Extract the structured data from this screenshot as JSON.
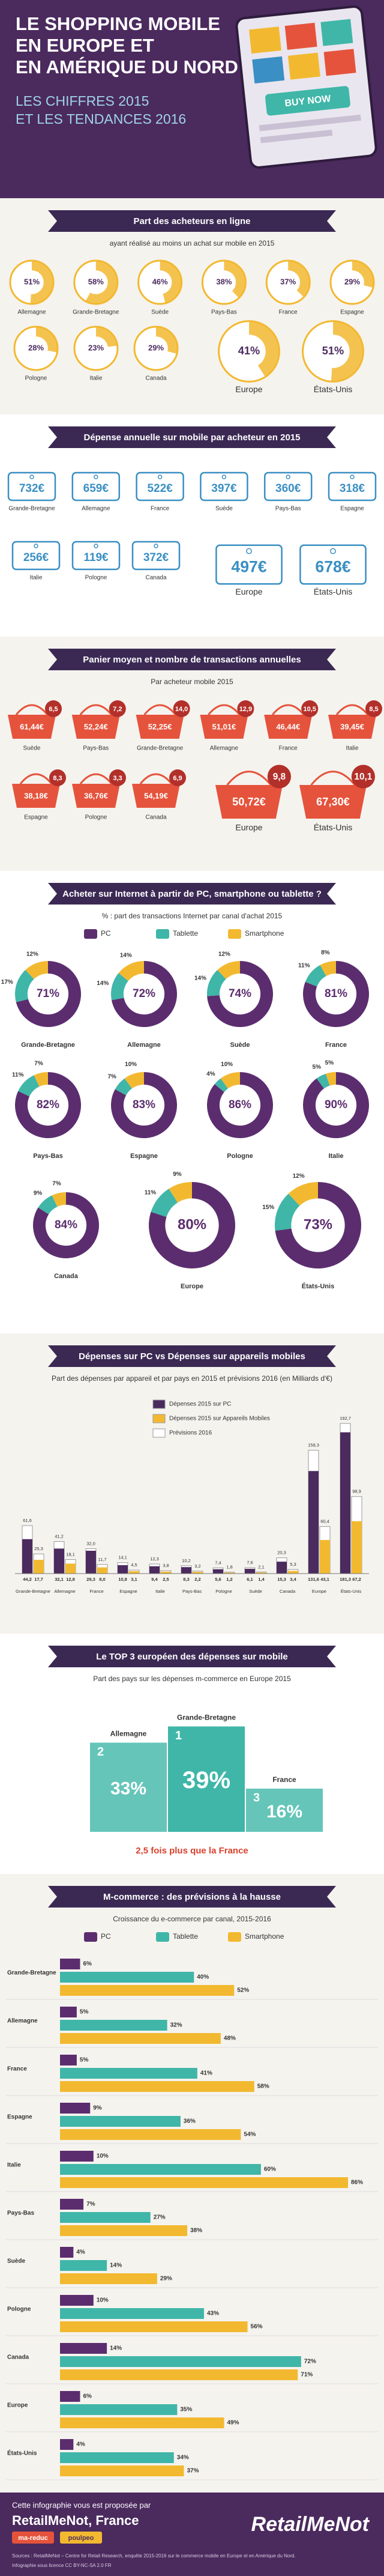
{
  "header": {
    "title_lines": [
      "LE SHOPPING MOBILE",
      "EN EUROPE ET",
      "EN AMÉRIQUE DU NORD"
    ],
    "subtitle_lines": [
      "LES CHIFFRES 2015",
      "ET LES TENDANCES 2016"
    ],
    "button": "BUY NOW"
  },
  "chart_data": [
    {
      "type": "pie",
      "title": "Part des acheteurs en ligne",
      "subtitle": "ayant réalisé au moins un achat sur mobile en 2015",
      "categories": [
        "Allemagne",
        "Grande-Bretagne",
        "Suède",
        "Pays-Bas",
        "France",
        "Espagne",
        "Pologne",
        "Italie",
        "Canada",
        "Europe",
        "États-Unis"
      ],
      "values": [
        51,
        58,
        46,
        38,
        37,
        29,
        28,
        23,
        29,
        41,
        51
      ],
      "value_labels": [
        "51%",
        "58%",
        "46%",
        "38%",
        "37%",
        "29%",
        "28%",
        "23%",
        "29%",
        "41%",
        "51%"
      ],
      "color": "#f2b930"
    },
    {
      "type": "tag",
      "title": "Dépense annuelle sur mobile par acheteur en 2015",
      "categories": [
        "Grande-Bretagne",
        "Allemagne",
        "France",
        "Suède",
        "Pays-Bas",
        "Espagne",
        "Italie",
        "Pologne",
        "Canada",
        "Europe",
        "États-Unis"
      ],
      "values": [
        732,
        659,
        522,
        397,
        360,
        318,
        256,
        119,
        372,
        497,
        678
      ],
      "value_labels": [
        "732€",
        "659€",
        "522€",
        "397€",
        "360€",
        "318€",
        "256€",
        "119€",
        "372€",
        "497€",
        "678€"
      ],
      "color": "#3a8fc4"
    },
    {
      "type": "basket",
      "title": "Panier moyen et nombre de transactions annuelles",
      "subtitle": "Par acheteur mobile 2015",
      "categories": [
        "Suède",
        "Pays-Bas",
        "Grande-Bretagne",
        "Allemagne",
        "France",
        "Italie",
        "Espagne",
        "Pologne",
        "Canada",
        "Europe",
        "États-Unis"
      ],
      "series": [
        {
          "color": "#e5533c",
          "values": [
            61.44,
            52.24,
            52.25,
            51.01,
            46.44,
            39.45,
            38.18,
            36.76,
            54.19,
            50.72,
            67.3
          ],
          "value_labels": [
            "61,44€",
            "52,24€",
            "52,25€",
            "51,01€",
            "46,44€",
            "39,45€",
            "38,18€",
            "36,76€",
            "54,19€",
            "50,72€",
            "67,30€"
          ]
        },
        {
          "color": "#b3302a",
          "values": [
            6.5,
            7.2,
            14.0,
            12.9,
            10.5,
            8.5,
            8.3,
            3.3,
            6.9,
            9.8,
            10.1
          ],
          "value_labels": [
            "6,5",
            "7,2",
            "14,0",
            "12,9",
            "10,5",
            "8,5",
            "8,3",
            "3,3",
            "6,9",
            "9,8",
            "10,1"
          ]
        }
      ]
    },
    {
      "type": "donut",
      "title": "Acheter sur Internet à partir de PC, smartphone ou tablette ?",
      "subtitle": "% : part des transactions Internet par canal d'achat 2015",
      "categories": [
        "Grande-Bretagne",
        "Allemagne",
        "Suède",
        "France",
        "Pays-Bas",
        "Espagne",
        "Pologne",
        "Italie",
        "Canada",
        "Europe",
        "États-Unis"
      ],
      "series": [
        {
          "name": "PC",
          "color": "#5b2d6e",
          "values": [
            71,
            72,
            74,
            81,
            82,
            83,
            86,
            90,
            84,
            80,
            73
          ],
          "value_labels": [
            "71%",
            "72%",
            "74%",
            "81%",
            "82%",
            "83%",
            "86%",
            "90%",
            "84%",
            "80%",
            "73%"
          ]
        },
        {
          "name": "Tablette",
          "color": "#3fb6a8",
          "values": [
            17,
            14,
            14,
            11,
            11,
            7,
            4,
            5,
            9,
            11,
            15
          ],
          "value_labels": [
            "17%",
            "14%",
            "14%",
            "11%",
            "11%",
            "7%",
            "4%",
            "5%",
            "9%",
            "11%",
            "15%"
          ]
        },
        {
          "name": "Smartphone",
          "color": "#f2b930",
          "values": [
            12,
            14,
            12,
            8,
            7,
            10,
            10,
            5,
            7,
            9,
            12
          ],
          "value_labels": [
            "12%",
            "14%",
            "12%",
            "8%",
            "7%",
            "10%",
            "10%",
            "5%",
            "7%",
            "9%",
            "12%"
          ]
        }
      ]
    },
    {
      "type": "bar",
      "title": "Dépenses sur PC vs Dépenses sur appareils mobiles",
      "subtitle": "Part des dépenses par appareil et par pays en 2015 et prévisions 2016 (en Milliards d'€)",
      "categories": [
        "Grande-Bretagne",
        "Allemagne",
        "France",
        "Espagne",
        "Italie",
        "Pays-Bas",
        "Pologne",
        "Suède",
        "Canada",
        "Europe",
        "États-Unis"
      ],
      "series": [
        {
          "name": "Dépenses 2015 sur PC",
          "color": "#4b2a5e",
          "values": [
            44.2,
            32.1,
            29.3,
            10.8,
            9.4,
            8.3,
            5.6,
            6.1,
            15.3,
            131.6,
            181.3
          ],
          "value_labels": [
            "44,2",
            "32,1",
            "29,3",
            "10,8",
            "9,4",
            "8,3",
            "5,6",
            "6,1",
            "15,3",
            "131,6",
            "181,3"
          ]
        },
        {
          "name": "Dépenses 2015 sur Appareils Mobiles",
          "color": "#f2b930",
          "values": [
            17.7,
            12.8,
            8.0,
            3.1,
            2.5,
            2.2,
            1.2,
            1.4,
            3.4,
            43.1,
            67.2
          ],
          "value_labels": [
            "17,7",
            "12,8",
            "8,0",
            "3,1",
            "2,5",
            "2,2",
            "1,2",
            "1,4",
            "3,4",
            "43,1",
            "67,2"
          ]
        },
        {
          "name": "Prévisions 2016",
          "color": "#ffffff",
          "values": [
            61.6,
            41.2,
            32.0,
            14.1,
            12.3,
            10.2,
            7.4,
            7.6,
            20.3,
            158.3,
            192.7
          ],
          "value_labels": [
            "61,6",
            "41,2",
            "32,0",
            "14,1",
            "12,3",
            "10,2",
            "7,4",
            "7,6",
            "20,3",
            "158,3",
            "192,7"
          ]
        },
        {
          "color": "#ffffff",
          "values": [
            25.3,
            18.1,
            11.7,
            4.5,
            3.8,
            3.2,
            1.8,
            2.1,
            5.3,
            60.4,
            98.9
          ],
          "value_labels": [
            "25,3",
            "18,1",
            "11,7",
            "4,5",
            "3,8",
            "3,2",
            "1,8",
            "2,1",
            "5,3",
            "60,4",
            "98,9"
          ]
        }
      ]
    },
    {
      "type": "podium",
      "title": "Le TOP 3 européen des dépenses sur mobile",
      "subtitle": "Part des pays sur les dépenses m-commerce en Europe 2015",
      "categories": [
        "Allemagne",
        "Grande-Bretagne",
        "France"
      ],
      "values": [
        33,
        39,
        16
      ],
      "value_labels": [
        "33%",
        "39%",
        "16%"
      ],
      "ranks": [
        2,
        1,
        3
      ],
      "color": "#3fb6a8",
      "annotation": "2,5 fois plus que la France"
    },
    {
      "type": "barh",
      "title": "M-commerce : des prévisions à la hausse",
      "subtitle": "Croissance du e-commerce par canal, 2015-2016",
      "categories": [
        "Grande-Bretagne",
        "Allemagne",
        "France",
        "Espagne",
        "Italie",
        "Pays-Bas",
        "Suède",
        "Pologne",
        "Canada",
        "Europe",
        "États-Unis"
      ],
      "series": [
        {
          "name": "PC",
          "color": "#5b2d6e",
          "values": [
            6,
            5,
            5,
            9,
            10,
            7,
            4,
            10,
            14,
            6,
            4
          ],
          "value_labels": [
            "6%",
            "5%",
            "5%",
            "9%",
            "10%",
            "7%",
            "4%",
            "10%",
            "14%",
            "6%",
            "4%"
          ]
        },
        {
          "name": "Tablette",
          "color": "#3fb6a8",
          "values": [
            40,
            32,
            41,
            36,
            60,
            27,
            14,
            43,
            72,
            35,
            34
          ],
          "value_labels": [
            "40%",
            "32%",
            "41%",
            "36%",
            "60%",
            "27%",
            "14%",
            "43%",
            "72%",
            "35%",
            "34%"
          ]
        },
        {
          "name": "Smartphone",
          "color": "#f2b930",
          "values": [
            52,
            48,
            58,
            54,
            86,
            38,
            29,
            56,
            71,
            49,
            37
          ],
          "value_labels": [
            "52%",
            "48%",
            "58%",
            "54%",
            "86%",
            "38%",
            "29%",
            "56%",
            "71%",
            "49%",
            "37%"
          ]
        }
      ]
    }
  ],
  "footer": {
    "intro": "Cette infographie vous est proposée par",
    "brand": "RetailMeNot, France",
    "partners": [
      "ma-reduc",
      "poulpeo"
    ],
    "logo": "RetailMeNot",
    "sources": "Sources : RetailMeNot – Centre for Retail Research, enquête 2015-2016 sur le commerce mobile en Europe et en Amérique du Nord.",
    "license": "Infographie sous licence CC BY-NC-SA 2.0 FR"
  }
}
